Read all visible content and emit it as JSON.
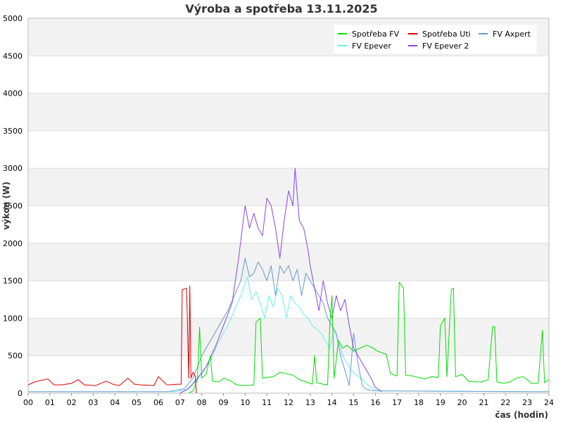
{
  "chart_data": {
    "type": "line",
    "title": "Výroba a spotřeba 13.11.2025",
    "xlabel": "čas (hodin)",
    "ylabel": "výkon (W)",
    "xlim": [
      0,
      24
    ],
    "ylim": [
      0,
      5000
    ],
    "x_ticks": [
      "00",
      "01",
      "02",
      "03",
      "04",
      "05",
      "06",
      "07",
      "08",
      "09",
      "10",
      "11",
      "12",
      "13",
      "14",
      "15",
      "16",
      "17",
      "18",
      "19",
      "20",
      "21",
      "22",
      "23",
      "24"
    ],
    "y_ticks": [
      0,
      500,
      1000,
      1500,
      2000,
      2500,
      3000,
      3500,
      4000,
      4500,
      5000
    ],
    "grid": true,
    "legend_position": "top-right",
    "series": [
      {
        "name": "Spotřeba FV",
        "color": "#00dd00",
        "points": [
          [
            7.4,
            0
          ],
          [
            7.6,
            30
          ],
          [
            7.8,
            180
          ],
          [
            7.9,
            880
          ],
          [
            8.0,
            200
          ],
          [
            8.2,
            250
          ],
          [
            8.4,
            500
          ],
          [
            8.5,
            160
          ],
          [
            8.8,
            150
          ],
          [
            9.0,
            200
          ],
          [
            9.3,
            170
          ],
          [
            9.6,
            110
          ],
          [
            10.0,
            100
          ],
          [
            10.4,
            110
          ],
          [
            10.5,
            950
          ],
          [
            10.7,
            1000
          ],
          [
            10.8,
            200
          ],
          [
            11.0,
            210
          ],
          [
            11.3,
            220
          ],
          [
            11.6,
            280
          ],
          [
            11.9,
            260
          ],
          [
            12.2,
            240
          ],
          [
            12.5,
            180
          ],
          [
            12.8,
            150
          ],
          [
            13.0,
            130
          ],
          [
            13.1,
            120
          ],
          [
            13.2,
            500
          ],
          [
            13.3,
            140
          ],
          [
            13.6,
            120
          ],
          [
            13.8,
            110
          ],
          [
            13.9,
            900
          ],
          [
            14.0,
            1300
          ],
          [
            14.1,
            200
          ],
          [
            14.3,
            700
          ],
          [
            14.5,
            600
          ],
          [
            14.7,
            640
          ],
          [
            15.0,
            560
          ],
          [
            15.3,
            600
          ],
          [
            15.6,
            640
          ],
          [
            15.9,
            600
          ],
          [
            16.1,
            560
          ],
          [
            16.5,
            520
          ],
          [
            16.7,
            260
          ],
          [
            17.0,
            230
          ],
          [
            17.1,
            1480
          ],
          [
            17.3,
            1400
          ],
          [
            17.4,
            240
          ],
          [
            17.7,
            230
          ],
          [
            18.0,
            210
          ],
          [
            18.3,
            190
          ],
          [
            18.6,
            220
          ],
          [
            18.9,
            210
          ],
          [
            19.0,
            900
          ],
          [
            19.2,
            1000
          ],
          [
            19.3,
            220
          ],
          [
            19.5,
            1380
          ],
          [
            19.6,
            1400
          ],
          [
            19.7,
            220
          ],
          [
            20.0,
            250
          ],
          [
            20.3,
            160
          ],
          [
            20.6,
            150
          ],
          [
            20.9,
            150
          ],
          [
            21.2,
            180
          ],
          [
            21.4,
            880
          ],
          [
            21.5,
            890
          ],
          [
            21.6,
            150
          ],
          [
            21.9,
            130
          ],
          [
            22.2,
            150
          ],
          [
            22.5,
            200
          ],
          [
            22.8,
            220
          ],
          [
            23.0,
            180
          ],
          [
            23.2,
            130
          ],
          [
            23.5,
            130
          ],
          [
            23.7,
            840
          ],
          [
            23.8,
            140
          ],
          [
            24.0,
            180
          ]
        ]
      },
      {
        "name": "Spotřeba Uti",
        "color": "#dd0000",
        "points": [
          [
            0,
            110
          ],
          [
            0.3,
            150
          ],
          [
            0.9,
            190
          ],
          [
            1.2,
            110
          ],
          [
            1.5,
            110
          ],
          [
            2.0,
            130
          ],
          [
            2.3,
            180
          ],
          [
            2.6,
            110
          ],
          [
            3.1,
            100
          ],
          [
            3.6,
            160
          ],
          [
            3.9,
            120
          ],
          [
            4.2,
            100
          ],
          [
            4.6,
            200
          ],
          [
            4.9,
            120
          ],
          [
            5.2,
            110
          ],
          [
            5.8,
            100
          ],
          [
            6.0,
            220
          ],
          [
            6.4,
            110
          ],
          [
            6.9,
            120
          ],
          [
            7.05,
            120
          ],
          [
            7.1,
            1380
          ],
          [
            7.3,
            1400
          ],
          [
            7.4,
            200
          ],
          [
            7.45,
            1430
          ],
          [
            7.5,
            200
          ],
          [
            7.6,
            280
          ],
          [
            7.7,
            230
          ],
          [
            7.75,
            0
          ]
        ]
      },
      {
        "name": "FV Axpert",
        "color": "#6699cc",
        "points": [
          [
            0,
            20
          ],
          [
            6.5,
            20
          ],
          [
            7.2,
            60
          ],
          [
            7.6,
            200
          ],
          [
            8.0,
            500
          ],
          [
            8.4,
            700
          ],
          [
            8.8,
            900
          ],
          [
            9.2,
            1100
          ],
          [
            9.5,
            1300
          ],
          [
            9.8,
            1500
          ],
          [
            10.0,
            1800
          ],
          [
            10.2,
            1550
          ],
          [
            10.4,
            1600
          ],
          [
            10.6,
            1750
          ],
          [
            10.8,
            1650
          ],
          [
            11.0,
            1500
          ],
          [
            11.2,
            1700
          ],
          [
            11.4,
            1300
          ],
          [
            11.6,
            1700
          ],
          [
            11.8,
            1600
          ],
          [
            12.0,
            1700
          ],
          [
            12.2,
            1500
          ],
          [
            12.4,
            1650
          ],
          [
            12.6,
            1300
          ],
          [
            12.8,
            1600
          ],
          [
            13.0,
            1500
          ],
          [
            13.2,
            1400
          ],
          [
            13.4,
            1300
          ],
          [
            13.6,
            1200
          ],
          [
            13.8,
            1000
          ],
          [
            14.0,
            900
          ],
          [
            14.2,
            800
          ],
          [
            14.4,
            500
          ],
          [
            14.6,
            300
          ],
          [
            14.8,
            100
          ],
          [
            15.0,
            800
          ],
          [
            15.2,
            400
          ],
          [
            15.4,
            100
          ],
          [
            15.6,
            50
          ],
          [
            16.0,
            30
          ],
          [
            24.0,
            20
          ]
        ]
      },
      {
        "name": "FV Epever",
        "color": "#66eeee",
        "points": [
          [
            0,
            20
          ],
          [
            6.8,
            20
          ],
          [
            7.3,
            50
          ],
          [
            7.6,
            120
          ],
          [
            8.0,
            250
          ],
          [
            8.4,
            450
          ],
          [
            8.8,
            700
          ],
          [
            9.2,
            900
          ],
          [
            9.5,
            1100
          ],
          [
            9.8,
            1300
          ],
          [
            10.1,
            1550
          ],
          [
            10.3,
            1250
          ],
          [
            10.5,
            1350
          ],
          [
            10.7,
            1200
          ],
          [
            10.9,
            1000
          ],
          [
            11.1,
            1300
          ],
          [
            11.3,
            1150
          ],
          [
            11.5,
            1400
          ],
          [
            11.7,
            1300
          ],
          [
            11.9,
            1000
          ],
          [
            12.1,
            1300
          ],
          [
            12.3,
            1200
          ],
          [
            12.5,
            1150
          ],
          [
            12.7,
            1050
          ],
          [
            12.9,
            1000
          ],
          [
            13.1,
            900
          ],
          [
            13.3,
            850
          ],
          [
            13.5,
            800
          ],
          [
            13.7,
            700
          ],
          [
            13.9,
            600
          ],
          [
            14.1,
            850
          ],
          [
            14.3,
            700
          ],
          [
            14.5,
            500
          ],
          [
            14.7,
            400
          ],
          [
            14.9,
            300
          ],
          [
            15.1,
            250
          ],
          [
            15.4,
            180
          ],
          [
            15.7,
            100
          ],
          [
            16.0,
            50
          ],
          [
            16.2,
            30
          ],
          [
            24.0,
            20
          ]
        ]
      },
      {
        "name": "FV Epever 2",
        "color": "#8844ee",
        "points": [
          [
            7.0,
            0
          ],
          [
            7.4,
            60
          ],
          [
            7.8,
            200
          ],
          [
            8.2,
            350
          ],
          [
            8.6,
            600
          ],
          [
            9.0,
            900
          ],
          [
            9.4,
            1200
          ],
          [
            9.7,
            1800
          ],
          [
            10.0,
            2500
          ],
          [
            10.2,
            2200
          ],
          [
            10.4,
            2400
          ],
          [
            10.6,
            2200
          ],
          [
            10.8,
            2100
          ],
          [
            11.0,
            2600
          ],
          [
            11.2,
            2500
          ],
          [
            11.4,
            2200
          ],
          [
            11.6,
            1800
          ],
          [
            11.8,
            2300
          ],
          [
            12.0,
            2700
          ],
          [
            12.2,
            2500
          ],
          [
            12.3,
            3000
          ],
          [
            12.5,
            2300
          ],
          [
            12.7,
            2200
          ],
          [
            12.9,
            1900
          ],
          [
            13.0,
            1700
          ],
          [
            13.2,
            1400
          ],
          [
            13.4,
            1100
          ],
          [
            13.6,
            1500
          ],
          [
            13.8,
            1200
          ],
          [
            14.0,
            1000
          ],
          [
            14.2,
            1300
          ],
          [
            14.4,
            1100
          ],
          [
            14.6,
            1250
          ],
          [
            14.8,
            900
          ],
          [
            15.0,
            600
          ],
          [
            15.2,
            500
          ],
          [
            15.4,
            400
          ],
          [
            15.6,
            300
          ],
          [
            15.8,
            200
          ],
          [
            16.0,
            80
          ],
          [
            16.3,
            20
          ]
        ]
      }
    ]
  }
}
